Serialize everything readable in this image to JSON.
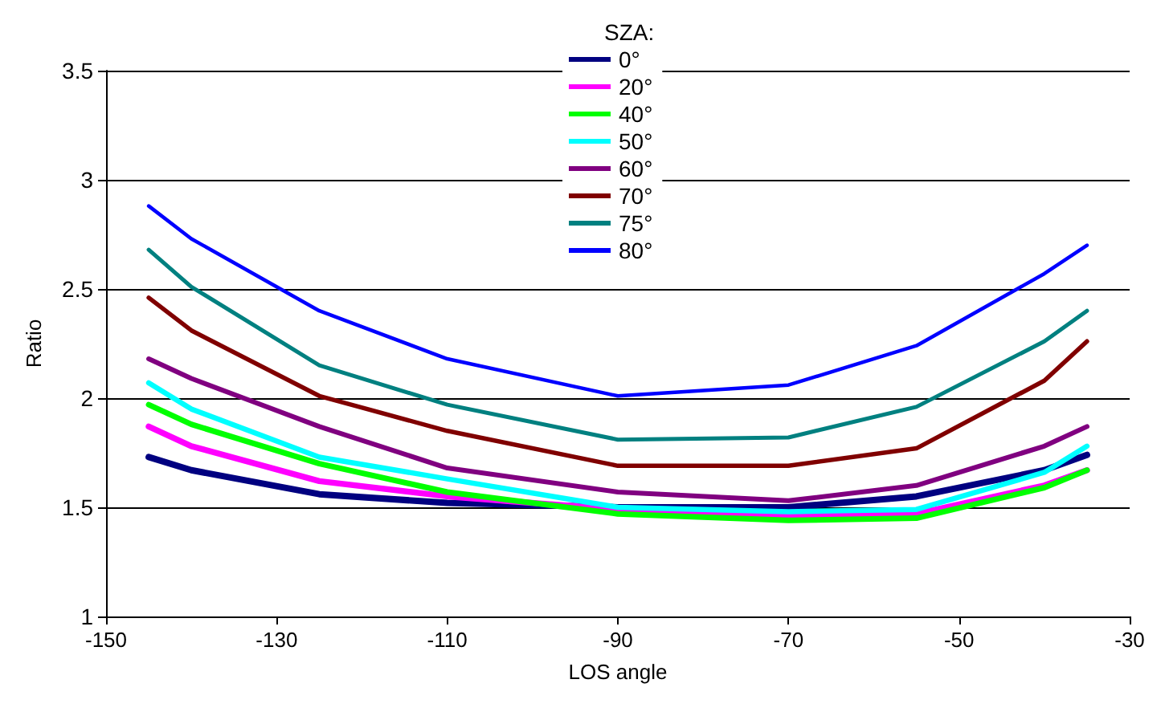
{
  "chart_data": {
    "type": "line",
    "xlabel": "LOS angle",
    "ylabel": "Ratio",
    "legend_title": "SZA:",
    "legend": "top",
    "grid": "y",
    "marker": "none",
    "line_style": "solid",
    "x": [
      -145,
      -140,
      -125,
      -110,
      -90,
      -70,
      -55,
      -40,
      -35
    ],
    "xlim": [
      -150,
      -30
    ],
    "xticks": [
      -150,
      -130,
      -110,
      -90,
      -70,
      -50,
      -30
    ],
    "ylim": [
      1,
      3.5
    ],
    "yticks": [
      1,
      1.5,
      2,
      2.5,
      3,
      3.5
    ],
    "series": [
      {
        "name": "0°",
        "color": "#000080",
        "values": [
          1.73,
          1.67,
          1.56,
          1.52,
          1.5,
          1.5,
          1.55,
          1.67,
          1.74
        ]
      },
      {
        "name": "20°",
        "color": "#ff00ff",
        "values": [
          1.87,
          1.78,
          1.62,
          1.55,
          1.49,
          1.46,
          1.47,
          1.6,
          1.67
        ]
      },
      {
        "name": "40°",
        "color": "#00ff00",
        "values": [
          1.97,
          1.88,
          1.7,
          1.57,
          1.47,
          1.44,
          1.45,
          1.59,
          1.67
        ]
      },
      {
        "name": "50°",
        "color": "#00ffff",
        "values": [
          2.07,
          1.95,
          1.73,
          1.63,
          1.5,
          1.48,
          1.49,
          1.66,
          1.78
        ]
      },
      {
        "name": "60°",
        "color": "#800080",
        "values": [
          2.18,
          2.09,
          1.87,
          1.68,
          1.57,
          1.53,
          1.6,
          1.78,
          1.87
        ]
      },
      {
        "name": "70°",
        "color": "#800000",
        "values": [
          2.46,
          2.31,
          2.01,
          1.85,
          1.69,
          1.69,
          1.77,
          2.08,
          2.26
        ]
      },
      {
        "name": "75°",
        "color": "#008080",
        "values": [
          2.68,
          2.51,
          2.15,
          1.97,
          1.81,
          1.82,
          1.96,
          2.26,
          2.4
        ]
      },
      {
        "name": "80°",
        "color": "#0000ff",
        "values": [
          2.88,
          2.73,
          2.4,
          2.18,
          2.01,
          2.06,
          2.24,
          2.57,
          2.7
        ]
      }
    ]
  }
}
